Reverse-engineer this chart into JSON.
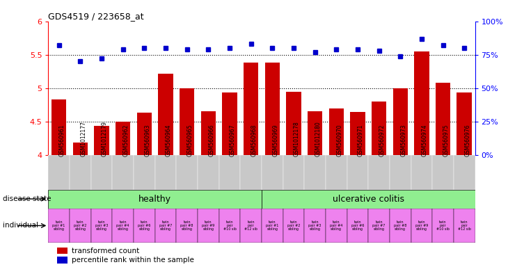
{
  "title": "GDS4519 / 223658_at",
  "samples": [
    "GSM560961",
    "GSM1012177",
    "GSM1012179",
    "GSM560962",
    "GSM560963",
    "GSM560964",
    "GSM560965",
    "GSM560966",
    "GSM560967",
    "GSM560968",
    "GSM560969",
    "GSM1012178",
    "GSM1012180",
    "GSM560970",
    "GSM560971",
    "GSM560972",
    "GSM560973",
    "GSM560974",
    "GSM560975",
    "GSM560976"
  ],
  "bar_values": [
    4.83,
    4.18,
    4.43,
    4.5,
    4.63,
    5.22,
    5.0,
    4.65,
    4.93,
    5.38,
    5.38,
    4.95,
    4.65,
    4.69,
    4.64,
    4.8,
    5.0,
    5.55,
    5.08,
    4.93
  ],
  "percentile_values": [
    82,
    70,
    72,
    79,
    80,
    80,
    79,
    79,
    80,
    83,
    80,
    80,
    77,
    79,
    79,
    78,
    74,
    87,
    82,
    80
  ],
  "bar_color": "#cc0000",
  "dot_color": "#0000cc",
  "ylim_left": [
    4.0,
    6.0
  ],
  "ylim_right": [
    0,
    100
  ],
  "yticks_left": [
    4.0,
    4.5,
    5.0,
    5.5,
    6.0
  ],
  "ytick_labels_left": [
    "4",
    "4.5",
    "5",
    "5.5",
    "6"
  ],
  "yticks_right": [
    0,
    25,
    50,
    75,
    100
  ],
  "ytick_labels_right": [
    "0%",
    "25%",
    "50%",
    "75%",
    "100%"
  ],
  "healthy_count": 10,
  "uc_count": 10,
  "individual_labels": [
    "twin\npair #1\nsibling",
    "twin\npair #2\nsibling",
    "twin\npair #3\nsibling",
    "twin\npair #4\nsibling",
    "twin\npair #6\nsibling",
    "twin\npair #7\nsibling",
    "twin\npair #8\nsibling",
    "twin\npair #9\nsibling",
    "twin\npair\n#10 sib",
    "twin\npair\n#12 sib",
    "twin\npair #1\nsibling",
    "twin\npair #2\nsibling",
    "twin\npair #3\nsibling",
    "twin\npair #4\nsibling",
    "twin\npair #6\nsibling",
    "twin\npair #7\nsibling",
    "twin\npair #8\nsibling",
    "twin\npair #9\nsibling",
    "twin\npair\n#10 sib",
    "twin\npair\n#12 sib"
  ],
  "legend_bar_label": "transformed count",
  "legend_dot_label": "percentile rank within the sample",
  "healthy_bg": "#90ee90",
  "uc_bg": "#90ee90",
  "individual_bg": "#ee82ee",
  "sample_bg": "#c8c8c8",
  "dotted_line_color": "#000000"
}
